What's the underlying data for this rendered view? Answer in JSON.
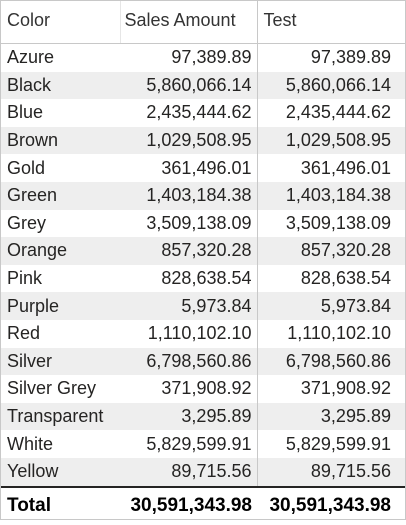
{
  "table": {
    "columns": [
      "Color",
      "Sales Amount",
      "Test"
    ],
    "rows": [
      {
        "color": "Azure",
        "sales_amount": "97,389.89",
        "test": "97,389.89"
      },
      {
        "color": "Black",
        "sales_amount": "5,860,066.14",
        "test": "5,860,066.14"
      },
      {
        "color": "Blue",
        "sales_amount": "2,435,444.62",
        "test": "2,435,444.62"
      },
      {
        "color": "Brown",
        "sales_amount": "1,029,508.95",
        "test": "1,029,508.95"
      },
      {
        "color": "Gold",
        "sales_amount": "361,496.01",
        "test": "361,496.01"
      },
      {
        "color": "Green",
        "sales_amount": "1,403,184.38",
        "test": "1,403,184.38"
      },
      {
        "color": "Grey",
        "sales_amount": "3,509,138.09",
        "test": "3,509,138.09"
      },
      {
        "color": "Orange",
        "sales_amount": "857,320.28",
        "test": "857,320.28"
      },
      {
        "color": "Pink",
        "sales_amount": "828,638.54",
        "test": "828,638.54"
      },
      {
        "color": "Purple",
        "sales_amount": "5,973.84",
        "test": "5,973.84"
      },
      {
        "color": "Red",
        "sales_amount": "1,110,102.10",
        "test": "1,110,102.10"
      },
      {
        "color": "Silver",
        "sales_amount": "6,798,560.86",
        "test": "6,798,560.86"
      },
      {
        "color": "Silver Grey",
        "sales_amount": "371,908.92",
        "test": "371,908.92"
      },
      {
        "color": "Transparent",
        "sales_amount": "3,295.89",
        "test": "3,295.89"
      },
      {
        "color": "White",
        "sales_amount": "5,829,599.91",
        "test": "5,829,599.91"
      },
      {
        "color": "Yellow",
        "sales_amount": "89,715.56",
        "test": "89,715.56"
      }
    ],
    "total": {
      "label": "Total",
      "sales_amount": "30,591,343.98",
      "test": "30,591,343.98"
    }
  },
  "colors": {
    "border": "#c8c8c8",
    "row_alt": "#eeeeee",
    "text": "#252423",
    "total_rule": "#252423"
  }
}
